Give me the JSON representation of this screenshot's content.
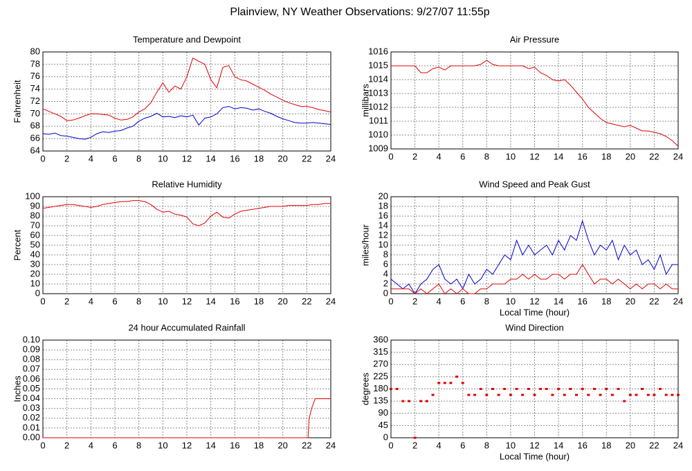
{
  "title": "Plainview, NY Weather Observations: 9/27/07 11:55p",
  "chart_data": [
    {
      "type": "line",
      "title": "Temperature and Dewpoint",
      "ylabel": "Fahrenheit",
      "x": [
        0,
        0.5,
        1,
        1.5,
        2,
        2.5,
        3,
        3.5,
        4,
        4.5,
        5,
        5.5,
        6,
        6.5,
        7,
        7.5,
        8,
        8.5,
        9,
        9.5,
        10,
        10.5,
        11,
        11.5,
        12,
        12.5,
        13,
        13.5,
        14,
        14.5,
        15,
        15.5,
        16,
        16.5,
        17,
        17.5,
        18,
        18.5,
        19,
        19.5,
        20,
        20.5,
        21,
        21.5,
        22,
        22.5,
        23,
        23.5,
        24
      ],
      "series": [
        {
          "color": "#e00000",
          "values": [
            70.8,
            70.4,
            70.0,
            69.6,
            68.9,
            69.0,
            69.3,
            69.7,
            70.0,
            70.0,
            69.9,
            69.8,
            69.3,
            69.0,
            69.1,
            69.5,
            70.3,
            70.8,
            71.8,
            73.5,
            75.0,
            73.5,
            74.5,
            74.0,
            76.0,
            79.0,
            78.5,
            78.0,
            75.5,
            74.2,
            77.5,
            77.8,
            76.0,
            75.5,
            75.3,
            74.8,
            74.3,
            73.8,
            73.2,
            72.7,
            72.2,
            71.8,
            71.5,
            71.2,
            71.2,
            71.0,
            70.7,
            70.5,
            70.3
          ]
        },
        {
          "color": "#0000d0",
          "values": [
            66.8,
            66.7,
            66.9,
            66.5,
            66.4,
            66.2,
            66.0,
            65.9,
            66.2,
            66.8,
            67.1,
            67.0,
            67.2,
            67.3,
            67.7,
            68.0,
            68.8,
            69.3,
            69.6,
            70.1,
            69.5,
            69.6,
            69.4,
            69.7,
            69.5,
            69.8,
            68.2,
            69.3,
            69.5,
            70.0,
            71.0,
            71.2,
            70.8,
            71.0,
            70.9,
            70.6,
            70.8,
            70.4,
            70.1,
            69.6,
            69.2,
            68.9,
            68.6,
            68.5,
            68.5,
            68.6,
            68.5,
            68.4,
            68.3
          ]
        }
      ],
      "xlim": [
        0,
        24
      ],
      "xticks": [
        0,
        2,
        4,
        6,
        8,
        10,
        12,
        14,
        16,
        18,
        20,
        22,
        24
      ],
      "ylim": [
        64,
        80
      ],
      "yticks": [
        64,
        66,
        68,
        70,
        72,
        74,
        76,
        78,
        80
      ],
      "grid": true
    },
    {
      "type": "line",
      "title": "Air Pressure",
      "ylabel": "millibars",
      "x": [
        0,
        0.5,
        1,
        1.5,
        2,
        2.5,
        3,
        3.5,
        4,
        4.5,
        5,
        5.5,
        6,
        6.5,
        7,
        7.5,
        8,
        8.5,
        9,
        9.5,
        10,
        10.5,
        11,
        11.5,
        12,
        12.5,
        13,
        13.5,
        14,
        14.5,
        15,
        15.5,
        16,
        16.5,
        17,
        17.5,
        18,
        18.5,
        19,
        19.5,
        20,
        20.5,
        21,
        21.5,
        22,
        22.5,
        23,
        23.5,
        24
      ],
      "series": [
        {
          "color": "#e00000",
          "values": [
            1015.0,
            1015.0,
            1015.0,
            1015.0,
            1015.0,
            1014.5,
            1014.5,
            1014.8,
            1014.9,
            1014.7,
            1015.0,
            1015.0,
            1015.0,
            1015.0,
            1015.0,
            1015.1,
            1015.4,
            1015.1,
            1015.0,
            1015.0,
            1015.0,
            1015.0,
            1015.0,
            1014.8,
            1014.9,
            1014.5,
            1014.3,
            1014.0,
            1013.9,
            1014.0,
            1013.6,
            1013.1,
            1012.6,
            1012.0,
            1011.6,
            1011.2,
            1010.9,
            1010.8,
            1010.7,
            1010.6,
            1010.7,
            1010.5,
            1010.3,
            1010.3,
            1010.2,
            1010.1,
            1009.9,
            1009.6,
            1009.2
          ]
        }
      ],
      "xlim": [
        0,
        24
      ],
      "xticks": [
        0,
        2,
        4,
        6,
        8,
        10,
        12,
        14,
        16,
        18,
        20,
        22,
        24
      ],
      "ylim": [
        1009,
        1016
      ],
      "yticks": [
        1009,
        1010,
        1011,
        1012,
        1013,
        1014,
        1015,
        1016
      ],
      "grid": true
    },
    {
      "type": "line",
      "title": "Relative Humidity",
      "ylabel": "Percent",
      "x": [
        0,
        0.5,
        1,
        1.5,
        2,
        2.5,
        3,
        3.5,
        4,
        4.5,
        5,
        5.5,
        6,
        6.5,
        7,
        7.5,
        8,
        8.5,
        9,
        9.5,
        10,
        10.5,
        11,
        11.5,
        12,
        12.5,
        13,
        13.5,
        14,
        14.5,
        15,
        15.5,
        16,
        16.5,
        17,
        17.5,
        18,
        18.5,
        19,
        19.5,
        20,
        20.5,
        21,
        21.5,
        22,
        22.5,
        23,
        23.5,
        24
      ],
      "series": [
        {
          "color": "#e00000",
          "values": [
            88,
            89,
            90,
            91,
            92,
            92,
            91,
            90,
            89,
            90,
            92,
            93,
            94,
            95,
            95,
            96,
            96,
            95,
            92,
            87,
            84,
            85,
            82,
            81,
            79,
            72,
            70,
            73,
            80,
            84,
            79,
            78,
            82,
            85,
            86,
            87,
            88,
            89,
            90,
            90,
            90,
            91,
            91,
            91,
            91,
            92,
            92,
            93,
            93
          ]
        }
      ],
      "xlim": [
        0,
        24
      ],
      "xticks": [
        0,
        2,
        4,
        6,
        8,
        10,
        12,
        14,
        16,
        18,
        20,
        22,
        24
      ],
      "ylim": [
        0,
        100
      ],
      "yticks": [
        0,
        10,
        20,
        30,
        40,
        50,
        60,
        70,
        80,
        90,
        100
      ],
      "grid": true
    },
    {
      "type": "line",
      "title": "Wind Speed and Peak Gust",
      "ylabel": "miles/hour",
      "xlabel": "Local Time (hour)",
      "x": [
        0,
        0.5,
        1,
        1.5,
        2,
        2.5,
        3,
        3.5,
        4,
        4.5,
        5,
        5.5,
        6,
        6.5,
        7,
        7.5,
        8,
        8.5,
        9,
        9.5,
        10,
        10.5,
        11,
        11.5,
        12,
        12.5,
        13,
        13.5,
        14,
        14.5,
        15,
        15.5,
        16,
        16.5,
        17,
        17.5,
        18,
        18.5,
        19,
        19.5,
        20,
        20.5,
        21,
        21.5,
        22,
        22.5,
        23,
        23.5,
        24
      ],
      "series": [
        {
          "color": "#0000d0",
          "values": [
            3,
            2,
            1,
            2,
            0,
            2,
            3,
            5,
            6,
            3,
            2,
            3,
            1,
            4,
            2,
            3,
            5,
            4,
            6,
            8,
            7,
            11,
            8,
            10,
            8,
            9,
            10,
            8,
            11,
            9,
            12,
            11,
            15,
            11,
            8,
            10,
            9,
            11,
            7,
            10,
            8,
            9,
            6,
            7,
            5,
            8,
            4,
            6,
            6
          ]
        },
        {
          "color": "#e00000",
          "values": [
            1,
            1,
            1,
            1,
            0,
            1,
            0,
            1,
            2,
            0,
            1,
            0,
            1,
            0,
            0,
            1,
            1,
            2,
            2,
            2,
            3,
            3,
            4,
            3,
            4,
            3,
            3,
            4,
            4,
            3,
            4,
            4,
            6,
            4,
            2,
            3,
            3,
            2,
            3,
            2,
            1,
            2,
            1,
            2,
            2,
            1,
            2,
            1,
            1
          ]
        }
      ],
      "xlim": [
        0,
        24
      ],
      "xticks": [
        0,
        2,
        4,
        6,
        8,
        10,
        12,
        14,
        16,
        18,
        20,
        22,
        24
      ],
      "ylim": [
        0,
        20
      ],
      "yticks": [
        0,
        2,
        4,
        6,
        8,
        10,
        12,
        14,
        16,
        18,
        20
      ],
      "grid": true
    },
    {
      "type": "line",
      "title": "24 hour Accumulated Rainfall",
      "ylabel": "Inches",
      "x": [
        0,
        22.1,
        22.2,
        22.4,
        22.7,
        24
      ],
      "series": [
        {
          "color": "#e00000",
          "values": [
            0,
            0,
            0.02,
            0.03,
            0.04,
            0.04
          ]
        }
      ],
      "xlim": [
        0,
        24
      ],
      "xticks": [
        0,
        2,
        4,
        6,
        8,
        10,
        12,
        14,
        16,
        18,
        20,
        22,
        24
      ],
      "ylim": [
        0,
        0.1
      ],
      "yticks": [
        {
          "value": 0,
          "label": "0.00"
        },
        {
          "value": 0.01,
          "label": "0.01"
        },
        {
          "value": 0.02,
          "label": "0.02"
        },
        {
          "value": 0.03,
          "label": "0.03"
        },
        {
          "value": 0.04,
          "label": "0.04"
        },
        {
          "value": 0.05,
          "label": "0.05"
        },
        {
          "value": 0.06,
          "label": "0.06"
        },
        {
          "value": 0.07,
          "label": "0.07"
        },
        {
          "value": 0.08,
          "label": "0.08"
        },
        {
          "value": 0.09,
          "label": "0.09"
        },
        {
          "value": 0.1,
          "label": "0.10"
        }
      ],
      "grid": true
    },
    {
      "type": "scatter",
      "title": "Wind Direction",
      "ylabel": "degrees",
      "xlabel": "Local Time (hour)",
      "x": [
        0,
        0.5,
        1,
        1.5,
        2,
        2.5,
        3,
        3.5,
        4,
        4.5,
        5,
        5.5,
        6,
        6.5,
        7,
        7.5,
        8,
        8.5,
        9,
        9.5,
        10,
        10.5,
        11,
        11.5,
        12,
        12.5,
        13,
        13.5,
        14,
        14.5,
        15,
        15.5,
        16,
        16.5,
        17,
        17.5,
        18,
        18.5,
        19,
        19.5,
        20,
        20.5,
        21,
        21.5,
        22,
        22.5,
        23,
        23.5,
        24
      ],
      "series": [
        {
          "color": "#e00000",
          "values": [
            180,
            180,
            135,
            135,
            0,
            135,
            135,
            158,
            202,
            202,
            202,
            225,
            202,
            158,
            158,
            180,
            158,
            180,
            158,
            180,
            158,
            180,
            158,
            180,
            158,
            180,
            180,
            158,
            180,
            158,
            180,
            158,
            180,
            158,
            180,
            158,
            180,
            158,
            180,
            135,
            158,
            158,
            180,
            158,
            158,
            180,
            158,
            158,
            158
          ]
        }
      ],
      "xlim": [
        0,
        24
      ],
      "xticks": [
        0,
        2,
        4,
        6,
        8,
        10,
        12,
        14,
        16,
        18,
        20,
        22,
        24
      ],
      "ylim": [
        0,
        360
      ],
      "yticks": [
        0,
        45,
        90,
        135,
        180,
        225,
        270,
        315,
        360
      ],
      "grid": true
    }
  ]
}
